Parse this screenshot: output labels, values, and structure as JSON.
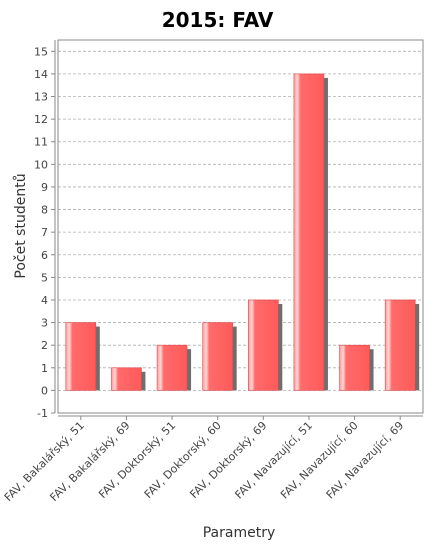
{
  "chart_data": {
    "type": "bar",
    "title": "2015: FAV",
    "xlabel": "Parametry",
    "ylabel": "Počet studentů",
    "categories": [
      "FAV, Bakalářský, 51",
      "FAV, Bakalářský, 69",
      "FAV, Doktorský, 51",
      "FAV, Doktorský, 60",
      "FAV, Doktorský, 69",
      "FAV, Navazující, 51",
      "FAV, Navazující, 60",
      "FAV, Navazující, 69"
    ],
    "values": [
      3,
      1,
      2,
      3,
      4,
      14,
      2,
      4
    ],
    "ylim": [
      -1,
      15.5
    ],
    "yticks": [
      "-1",
      "0",
      "1",
      "2",
      "3",
      "4",
      "5",
      "6",
      "7",
      "8",
      "9",
      "10",
      "11",
      "12",
      "13",
      "14",
      "15"
    ],
    "grid": true,
    "bar_color": "#ff5e5e",
    "shadow_color": "#6e6e6e"
  }
}
